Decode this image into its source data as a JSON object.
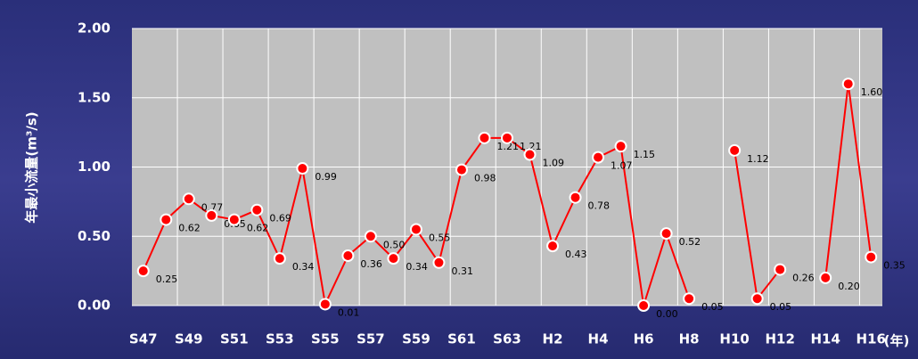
{
  "chart_data": {
    "type": "line",
    "y_label": "年最小流量(m³/s)",
    "x_label": "(年)",
    "categories": [
      "S47",
      null,
      "S49",
      null,
      "S51",
      null,
      "S53",
      null,
      "S55",
      null,
      "S57",
      null,
      "S59",
      null,
      "S61",
      null,
      "S63",
      null,
      "H2",
      null,
      "H4",
      null,
      "H6",
      null,
      "H8",
      null,
      "H10",
      null,
      "H12",
      null,
      "H14",
      null,
      "H16"
    ],
    "values": [
      0.25,
      0.62,
      0.77,
      0.65,
      0.62,
      0.69,
      0.34,
      0.99,
      0.01,
      0.36,
      0.5,
      0.34,
      0.55,
      0.31,
      0.98,
      1.21,
      1.21,
      1.09,
      0.43,
      0.78,
      1.07,
      1.15,
      0.0,
      0.52,
      0.05,
      null,
      1.12,
      0.05,
      0.26,
      null,
      0.2,
      1.6,
      0.35
    ],
    "value_labels": [
      "0.25",
      "0.62",
      "0.77",
      "0.65",
      "0.62",
      "0.69",
      "0.34",
      "0.99",
      "0.01",
      "0.36",
      "0.50",
      "0.34",
      "0.55",
      "0.31",
      "0.98",
      "1.21",
      "1.21",
      "1.09",
      "0.43",
      "0.78",
      "1.07",
      "1.15",
      "0.00",
      "0.52",
      "0.05",
      null,
      "1.12",
      "0.05",
      "0.26",
      null,
      "0.20",
      "1.60",
      "0.35"
    ],
    "color": "#ff0000",
    "ylim": [
      0,
      2
    ],
    "yticks": [
      {
        "value": 0,
        "label": "0.00"
      },
      {
        "value": 0.5,
        "label": "0.50"
      },
      {
        "value": 1,
        "label": "1.00"
      },
      {
        "value": 1.5,
        "label": "1.50"
      },
      {
        "value": 2,
        "label": "2.00"
      }
    ],
    "grid": true
  }
}
